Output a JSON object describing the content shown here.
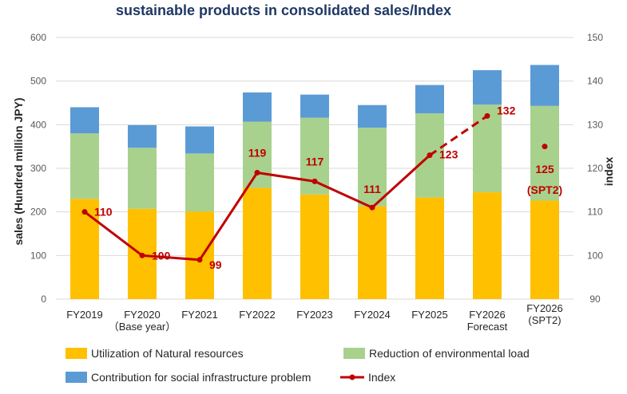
{
  "chart_data": {
    "type": "bar",
    "stacked": true,
    "title": "sustainable products in consolidated sales/Index",
    "ylabel": "sales (Hundred million JPY)",
    "y2label": "index",
    "ylim": [
      0,
      600
    ],
    "y2lim": [
      90,
      150
    ],
    "yticks": [
      "0",
      "100",
      "200",
      "300",
      "400",
      "500",
      "600"
    ],
    "y2ticks": [
      "90",
      "100",
      "110",
      "120",
      "130",
      "140",
      "150"
    ],
    "grid": true,
    "legend_position": "bottom",
    "categories": [
      [
        "FY2019"
      ],
      [
        "FY2020",
        "（Base year）"
      ],
      [
        "FY2021"
      ],
      [
        "FY2022"
      ],
      [
        "FY2023"
      ],
      [
        "FY2024"
      ],
      [
        "FY2025"
      ],
      [
        "FY2026",
        "Forecast"
      ],
      [
        "FY2026",
        "(SPT2)"
      ]
    ],
    "series": [
      {
        "name": "Utilization of Natural resources",
        "color": "#ffc000",
        "values": [
          230,
          207,
          201,
          255,
          240,
          213,
          233,
          245,
          226
        ]
      },
      {
        "name": "Reduction of environmental load",
        "color": "#a9d18e",
        "values": [
          150,
          140,
          133,
          152,
          176,
          180,
          193,
          201,
          217
        ]
      },
      {
        "name": "Contribution for social infrastructure problem",
        "color": "#5b9bd5",
        "values": [
          60,
          52,
          62,
          67,
          53,
          52,
          65,
          79,
          94
        ]
      }
    ],
    "line_series": {
      "name": "Index",
      "color": "#c00000",
      "axis": "secondary",
      "values": [
        110,
        100,
        99,
        119,
        117,
        111,
        123,
        132,
        125
      ],
      "labels": [
        "110",
        "100",
        "99",
        "119",
        "117",
        "111",
        "123",
        "132",
        [
          "125",
          "(SPT2)"
        ]
      ],
      "segment_styles": [
        "solid",
        "solid",
        "solid",
        "solid",
        "solid",
        "solid",
        "dashed",
        "none"
      ]
    }
  }
}
